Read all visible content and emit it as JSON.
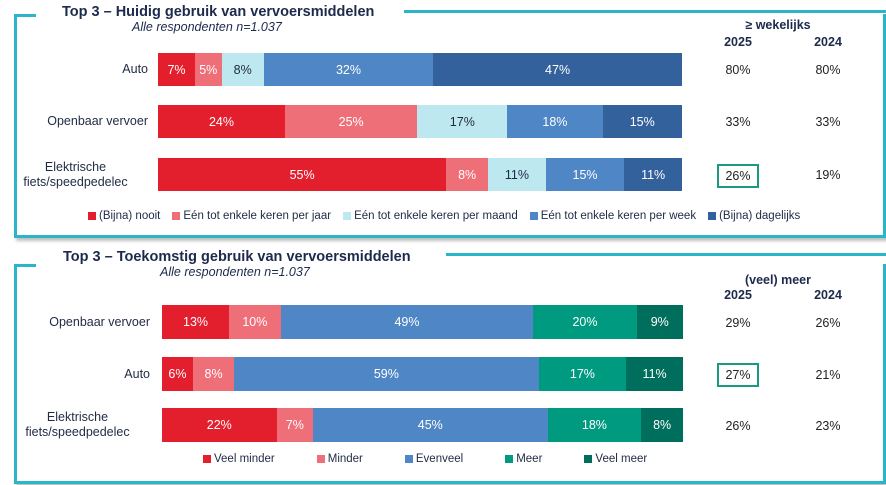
{
  "chart_data": [
    {
      "type": "bar",
      "orientation": "horizontal-stacked-100",
      "title": "Top 3 – Huidig gebruik van vervoersmiddelen",
      "subtitle": "Alle respondenten n=1.037",
      "categories": [
        "Auto",
        "Openbaar vervoer",
        "Elektrische fiets/speedpedelec"
      ],
      "category_lines": [
        [
          "Auto"
        ],
        [
          "Openbaar vervoer"
        ],
        [
          "Elektrische",
          "fiets/speedpedelec"
        ]
      ],
      "series": [
        {
          "name": "(Bijna) nooit",
          "color": "#e31e2d",
          "label_color": "light",
          "values": [
            7,
            24,
            55
          ]
        },
        {
          "name": "Eén tot enkele keren per jaar",
          "color": "#ef6f78",
          "label_color": "light",
          "values": [
            5,
            25,
            8
          ]
        },
        {
          "name": "Eén tot enkele keren per maand",
          "color": "#bde8f0",
          "label_color": "dark",
          "values": [
            8,
            17,
            11
          ]
        },
        {
          "name": "Eén tot enkele keren per week",
          "color": "#4f86c6",
          "label_color": "light",
          "values": [
            32,
            18,
            15
          ]
        },
        {
          "name": "(Bijna) dagelijks",
          "color": "#33619c",
          "label_color": "light",
          "values": [
            47,
            15,
            11
          ]
        }
      ],
      "legend_position": "bottom",
      "summary_table": {
        "heading": "≥ wekelijks",
        "columns": [
          "2025",
          "2024"
        ],
        "rows": [
          [
            "80%",
            "80%"
          ],
          [
            "33%",
            "33%"
          ],
          [
            "26%",
            "19%"
          ]
        ],
        "highlighted": [
          [
            2,
            0
          ]
        ]
      }
    },
    {
      "type": "bar",
      "orientation": "horizontal-stacked-100",
      "title": "Top 3 – Toekomstig gebruik van vervoersmiddelen",
      "subtitle": "Alle respondenten n=1.037",
      "categories": [
        "Openbaar vervoer",
        "Auto",
        "Elektrische fiets/speedpedelec"
      ],
      "category_lines": [
        [
          "Openbaar vervoer"
        ],
        [
          "Auto"
        ],
        [
          "Elektrische",
          "fiets/speedpedelec"
        ]
      ],
      "series": [
        {
          "name": "Veel minder",
          "color": "#e31e2d",
          "label_color": "light",
          "values": [
            13,
            6,
            22
          ]
        },
        {
          "name": "Minder",
          "color": "#ef6f78",
          "label_color": "light",
          "values": [
            10,
            8,
            7
          ]
        },
        {
          "name": "Evenveel",
          "color": "#4f86c6",
          "label_color": "light",
          "values": [
            49,
            59,
            45
          ]
        },
        {
          "name": "Meer",
          "color": "#009a80",
          "label_color": "light",
          "values": [
            20,
            17,
            18
          ]
        },
        {
          "name": "Veel meer",
          "color": "#006e5c",
          "label_color": "light",
          "values": [
            9,
            11,
            8
          ]
        }
      ],
      "legend_position": "bottom",
      "summary_table": {
        "heading": "(veel) meer",
        "columns": [
          "2025",
          "2024"
        ],
        "rows": [
          [
            "29%",
            "26%"
          ],
          [
            "27%",
            "21%"
          ],
          [
            "26%",
            "23%"
          ]
        ],
        "highlighted": [
          [
            1,
            0
          ]
        ]
      }
    }
  ]
}
